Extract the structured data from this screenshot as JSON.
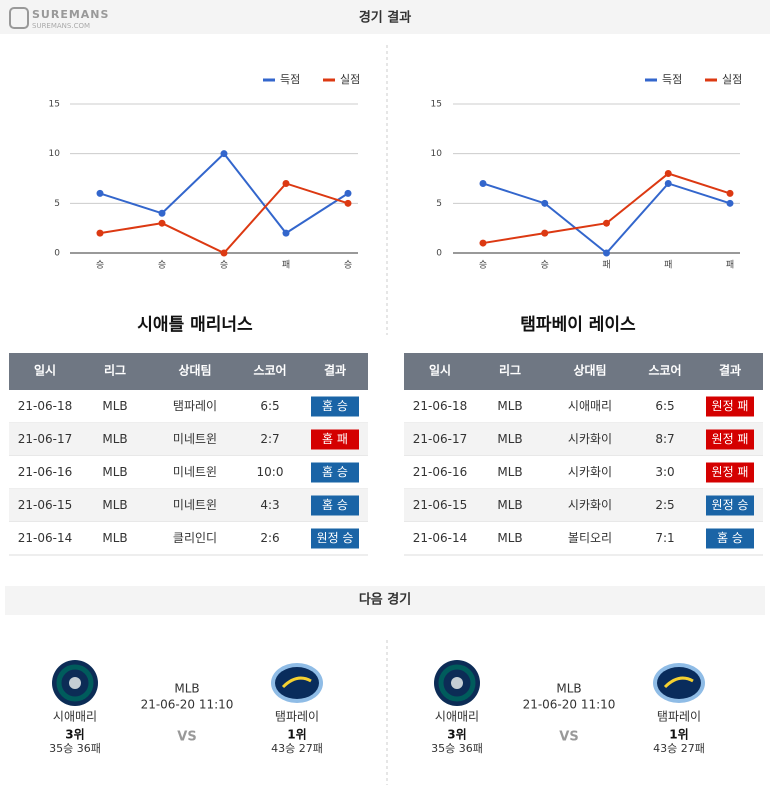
{
  "header": {
    "logo": "SUREMANS",
    "logo_sub": "SUREMANS.COM",
    "title": "경기 결과"
  },
  "chart_data": [
    {
      "type": "line",
      "categories": [
        "승",
        "승",
        "승",
        "패",
        "승"
      ],
      "series": [
        {
          "name": "득점",
          "color": "#3366cc",
          "values": [
            6,
            4,
            10,
            2,
            6
          ]
        },
        {
          "name": "실점",
          "color": "#dc3912",
          "values": [
            2,
            3,
            0,
            7,
            5
          ]
        }
      ],
      "ylim": [
        0,
        15
      ],
      "yticks": [
        0,
        5,
        10,
        15
      ],
      "grid": true,
      "legend": "top-right"
    },
    {
      "type": "line",
      "categories": [
        "승",
        "승",
        "패",
        "패",
        "패"
      ],
      "series": [
        {
          "name": "득점",
          "color": "#3366cc",
          "values": [
            7,
            5,
            0,
            7,
            5
          ]
        },
        {
          "name": "실점",
          "color": "#dc3912",
          "values": [
            1,
            2,
            3,
            8,
            6
          ]
        }
      ],
      "ylim": [
        0,
        15
      ],
      "yticks": [
        0,
        5,
        10,
        15
      ],
      "grid": true,
      "legend": "top-right"
    }
  ],
  "teams": [
    "시애틀 매리너스",
    "탬파베이 레이스"
  ],
  "tables": [
    {
      "columns": [
        "일시",
        "리그",
        "상대팀",
        "스코어",
        "결과"
      ],
      "rows": [
        [
          "21-06-18",
          "MLB",
          "탬파레이",
          "6:5",
          "홈 승"
        ],
        [
          "21-06-17",
          "MLB",
          "미네트윈",
          "2:7",
          "홈 패"
        ],
        [
          "21-06-16",
          "MLB",
          "미네트윈",
          "10:0",
          "홈 승"
        ],
        [
          "21-06-15",
          "MLB",
          "미네트윈",
          "4:3",
          "홈 승"
        ],
        [
          "21-06-14",
          "MLB",
          "클리인디",
          "2:6",
          "원정 승"
        ]
      ],
      "result_colors": [
        "#1a64a6",
        "#d40000",
        "#1a64a6",
        "#1a64a6",
        "#1a64a6"
      ]
    },
    {
      "columns": [
        "일시",
        "리그",
        "상대팀",
        "스코어",
        "결과"
      ],
      "rows": [
        [
          "21-06-18",
          "MLB",
          "시애매리",
          "6:5",
          "원정 패"
        ],
        [
          "21-06-17",
          "MLB",
          "시카화이",
          "8:7",
          "원정 패"
        ],
        [
          "21-06-16",
          "MLB",
          "시카화이",
          "3:0",
          "원정 패"
        ],
        [
          "21-06-15",
          "MLB",
          "시카화이",
          "2:5",
          "원정 승"
        ],
        [
          "21-06-14",
          "MLB",
          "볼티오리",
          "7:1",
          "홈 승"
        ]
      ],
      "result_colors": [
        "#d40000",
        "#d40000",
        "#d40000",
        "#1a64a6",
        "#1a64a6"
      ]
    }
  ],
  "next_section": {
    "title": "다음 경기",
    "games": [
      {
        "home": {
          "name": "시애매리",
          "rank": "3위",
          "record": "35승 36패"
        },
        "league": "MLB",
        "datetime": "21-06-20 11:10",
        "vs": "VS",
        "away": {
          "name": "탬파레이",
          "rank": "1위",
          "record": "43승 27패"
        }
      },
      {
        "home": {
          "name": "시애매리",
          "rank": "3위",
          "record": "35승 36패"
        },
        "league": "MLB",
        "datetime": "21-06-20 11:10",
        "vs": "VS",
        "away": {
          "name": "탬파레이",
          "rank": "1위",
          "record": "43승 27패"
        }
      }
    ]
  }
}
